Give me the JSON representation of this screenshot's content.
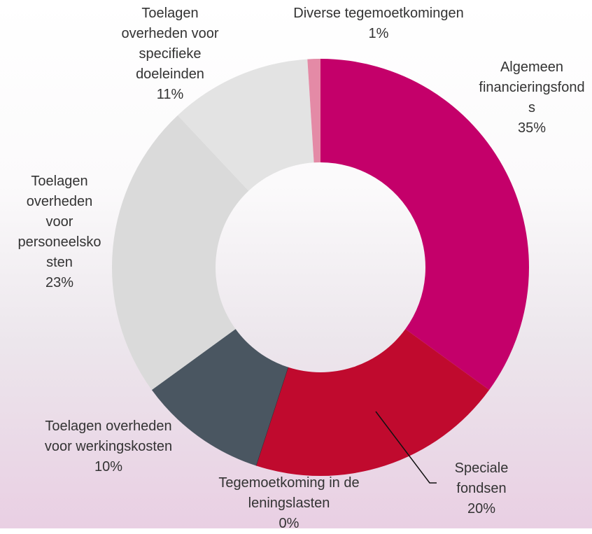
{
  "chart_data": {
    "type": "donut",
    "categories": [
      "Algemeen financieringsfonds",
      "Speciale fondsen",
      "Tegemoetkoming in de leningslasten",
      "Toelagen overheden voor werkingskosten",
      "Toelagen overheden voor personeelskosten",
      "Toelagen overheden voor specifieke doeleinden",
      "Diverse tegemoetkomingen"
    ],
    "values": [
      35,
      20,
      0,
      10,
      23,
      11,
      1
    ],
    "value_labels": [
      "35%",
      "20%",
      "0%",
      "10%",
      "23%",
      "11%",
      "1%"
    ],
    "colors": [
      "#c4006a",
      "#c00a2e",
      "#3a2a30",
      "#4a5661",
      "#dadada",
      "#e3e3e3",
      "#e48aa6"
    ]
  }
}
